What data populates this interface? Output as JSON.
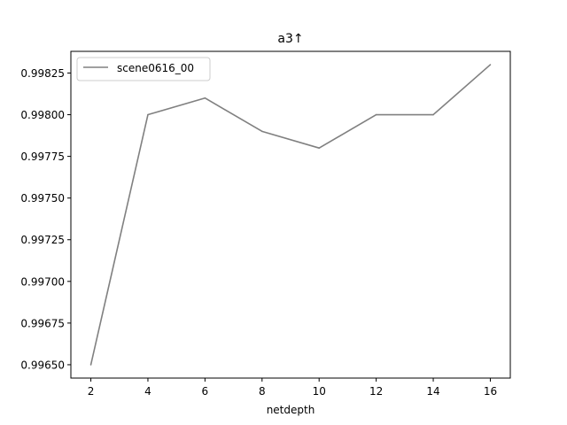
{
  "chart_data": {
    "type": "line",
    "title": "a3↑",
    "xlabel": "netdepth",
    "ylabel": "",
    "x": [
      2,
      4,
      6,
      8,
      10,
      12,
      14,
      16
    ],
    "series": [
      {
        "name": "scene0616_00",
        "color": "#808080",
        "values": [
          0.9965,
          0.998,
          0.9981,
          0.9979,
          0.9978,
          0.998,
          0.998,
          0.9983
        ]
      }
    ],
    "xlim": [
      1.3,
      16.7
    ],
    "ylim": [
      0.99642,
      0.99838
    ],
    "xticks": [
      "2",
      "4",
      "6",
      "8",
      "10",
      "12",
      "14",
      "16"
    ],
    "yticks": [
      "0.99650",
      "0.99675",
      "0.99700",
      "0.99725",
      "0.99750",
      "0.99775",
      "0.99800",
      "0.99825"
    ],
    "grid": false,
    "legend": "top-left"
  }
}
